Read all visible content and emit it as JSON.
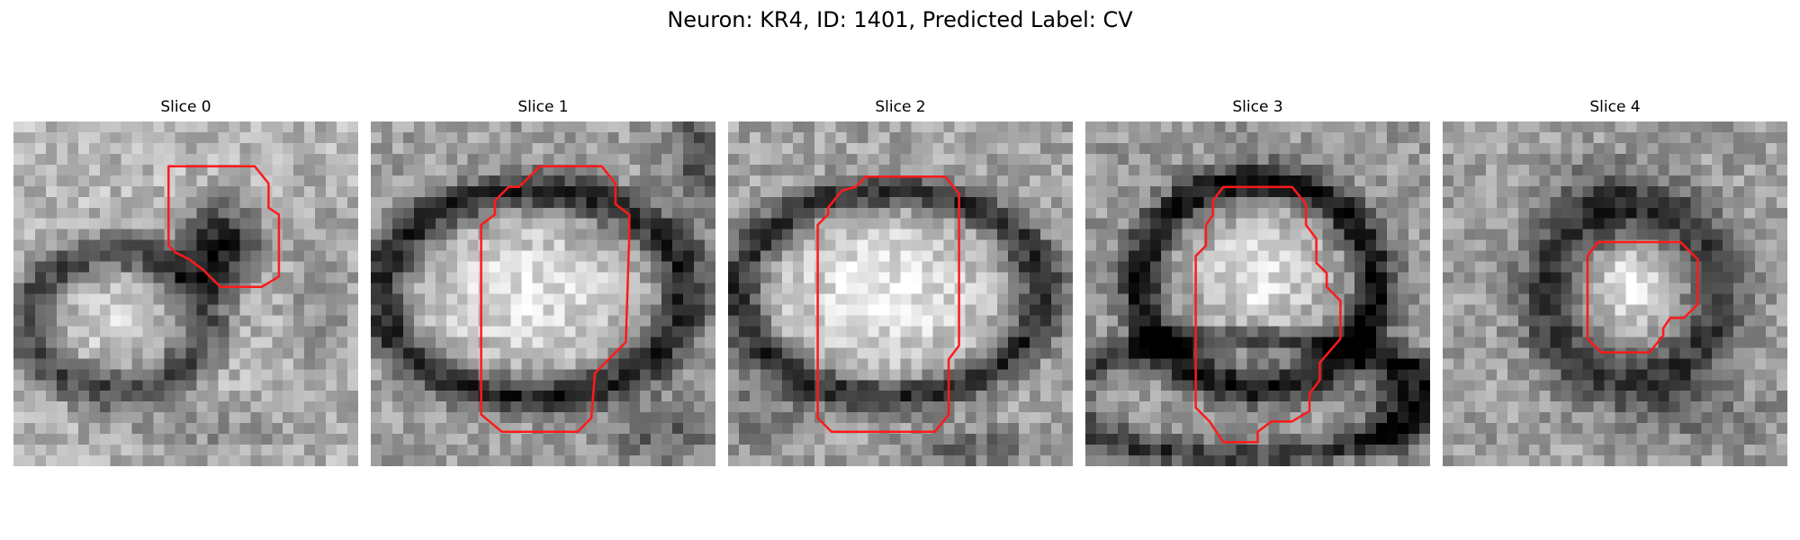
{
  "figure": {
    "title": "Neuron: KR4, ID: 1401, Predicted Label: CV"
  },
  "colors": {
    "contour": "#ff1a1a",
    "background": "#ffffff"
  },
  "image": {
    "colormap": "grayscale",
    "grid_size": 32
  },
  "panels": [
    {
      "title": "Slice 0",
      "image_description": "grayscale EM patch with dark blob at center-right and dark ring at lower-left",
      "contour": [
        [
          0.45,
          0.13
        ],
        [
          0.7,
          0.13
        ],
        [
          0.74,
          0.18
        ],
        [
          0.74,
          0.25
        ],
        [
          0.77,
          0.27
        ],
        [
          0.77,
          0.45
        ],
        [
          0.72,
          0.48
        ],
        [
          0.6,
          0.48
        ],
        [
          0.55,
          0.43
        ],
        [
          0.51,
          0.4
        ],
        [
          0.47,
          0.38
        ],
        [
          0.45,
          0.36
        ]
      ]
    },
    {
      "title": "Slice 1",
      "image_description": "grayscale EM patch with large bright ellipse bounded by a dark ring",
      "contour": [
        [
          0.49,
          0.13
        ],
        [
          0.67,
          0.13
        ],
        [
          0.71,
          0.18
        ],
        [
          0.71,
          0.24
        ],
        [
          0.75,
          0.27
        ],
        [
          0.75,
          0.32
        ],
        [
          0.74,
          0.64
        ],
        [
          0.65,
          0.73
        ],
        [
          0.64,
          0.86
        ],
        [
          0.6,
          0.9
        ],
        [
          0.38,
          0.9
        ],
        [
          0.32,
          0.85
        ],
        [
          0.32,
          0.3
        ],
        [
          0.36,
          0.27
        ],
        [
          0.36,
          0.23
        ],
        [
          0.4,
          0.19
        ],
        [
          0.43,
          0.19
        ]
      ]
    },
    {
      "title": "Slice 2",
      "image_description": "grayscale EM patch with large bright ellipse bounded by a dark ring",
      "contour": [
        [
          0.4,
          0.16
        ],
        [
          0.63,
          0.16
        ],
        [
          0.67,
          0.21
        ],
        [
          0.67,
          0.65
        ],
        [
          0.64,
          0.69
        ],
        [
          0.64,
          0.85
        ],
        [
          0.6,
          0.9
        ],
        [
          0.3,
          0.9
        ],
        [
          0.26,
          0.86
        ],
        [
          0.26,
          0.3
        ],
        [
          0.29,
          0.27
        ],
        [
          0.29,
          0.25
        ],
        [
          0.33,
          0.2
        ],
        [
          0.37,
          0.19
        ]
      ]
    },
    {
      "title": "Slice 3",
      "image_description": "grayscale EM patch with bright oval cell surrounded by a dark ring",
      "contour": [
        [
          0.4,
          0.19
        ],
        [
          0.6,
          0.19
        ],
        [
          0.64,
          0.24
        ],
        [
          0.64,
          0.3
        ],
        [
          0.67,
          0.34
        ],
        [
          0.67,
          0.41
        ],
        [
          0.7,
          0.44
        ],
        [
          0.7,
          0.48
        ],
        [
          0.74,
          0.52
        ],
        [
          0.74,
          0.63
        ],
        [
          0.68,
          0.7
        ],
        [
          0.68,
          0.75
        ],
        [
          0.65,
          0.79
        ],
        [
          0.65,
          0.84
        ],
        [
          0.6,
          0.87
        ],
        [
          0.54,
          0.87
        ],
        [
          0.5,
          0.9
        ],
        [
          0.5,
          0.93
        ],
        [
          0.4,
          0.93
        ],
        [
          0.36,
          0.87
        ],
        [
          0.32,
          0.83
        ],
        [
          0.32,
          0.39
        ],
        [
          0.35,
          0.36
        ],
        [
          0.35,
          0.3
        ],
        [
          0.37,
          0.27
        ],
        [
          0.37,
          0.23
        ]
      ]
    },
    {
      "title": "Slice 4",
      "image_description": "grayscale EM patch with small bright cell surrounded by a dark ring",
      "contour": [
        [
          0.45,
          0.35
        ],
        [
          0.69,
          0.35
        ],
        [
          0.74,
          0.4
        ],
        [
          0.74,
          0.53
        ],
        [
          0.7,
          0.57
        ],
        [
          0.66,
          0.57
        ],
        [
          0.64,
          0.6
        ],
        [
          0.64,
          0.62
        ],
        [
          0.6,
          0.67
        ],
        [
          0.46,
          0.67
        ],
        [
          0.42,
          0.63
        ],
        [
          0.42,
          0.39
        ]
      ]
    }
  ]
}
